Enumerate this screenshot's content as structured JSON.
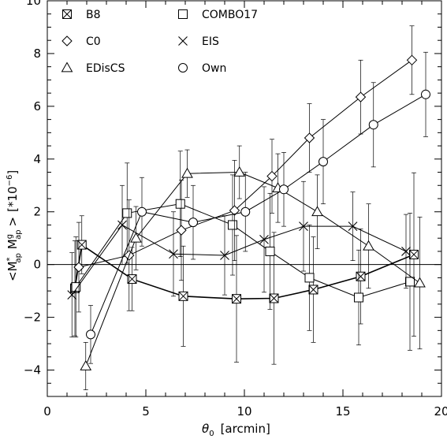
{
  "chart_data": {
    "type": "scatter",
    "xlabel_symbol": "θ",
    "xlabel_sub": "0",
    "xlabel_text": "[arcmin]",
    "ylabel_parts": {
      "open": "<M",
      "sup1": "*",
      "sub1": "ap",
      "mid": " M",
      "sup2": "g",
      "sub2": "ap",
      "close": ">",
      "unit": "[*10",
      "unit_exp": "−6",
      "unit_close": "]"
    },
    "xlim": [
      0,
      20
    ],
    "ylim": [
      -5,
      10
    ],
    "x_ticks": [
      0,
      5,
      10,
      15,
      20
    ],
    "x_tick_labels": [
      "0",
      "5",
      "10",
      "15",
      "20"
    ],
    "y_ticks": [
      -4,
      -2,
      0,
      2,
      4,
      6,
      8,
      10
    ],
    "y_tick_labels": [
      "−4",
      "−2",
      "0",
      "2",
      "4",
      "6",
      "8",
      "10"
    ],
    "zero_line": 0,
    "series": [
      {
        "name": "B8",
        "marker": "boxed-x",
        "line_width": 1.6,
        "x": [
          1.4,
          1.75,
          4.3,
          6.9,
          9.6,
          11.5,
          13.5,
          15.9,
          18.6
        ],
        "y": [
          -0.9,
          0.75,
          -0.55,
          -1.2,
          -1.3,
          -1.28,
          -0.95,
          -0.45,
          0.38
        ],
        "err": [
          1.8,
          1.1,
          1.2,
          1.9,
          2.4,
          2.5,
          2.0,
          1.8,
          3.1
        ]
      },
      {
        "name": "COMBO17",
        "marker": "square",
        "line_width": 1,
        "x": [
          1.45,
          4.05,
          6.75,
          9.4,
          11.3,
          13.3,
          15.8,
          18.4
        ],
        "y": [
          -0.85,
          1.95,
          2.3,
          1.5,
          0.5,
          -0.5,
          -1.25,
          -0.65
        ],
        "err": [
          1.9,
          1.9,
          2.0,
          1.9,
          2.2,
          2.0,
          1.8,
          2.6
        ]
      },
      {
        "name": "C0",
        "marker": "diamond",
        "line_width": 1,
        "x": [
          1.6,
          4.15,
          6.8,
          9.5,
          11.4,
          13.3,
          15.9,
          18.5
        ],
        "y": [
          -0.1,
          0.35,
          1.3,
          2.05,
          3.35,
          4.8,
          6.35,
          7.75
        ],
        "err": [
          1.7,
          2.1,
          1.9,
          1.9,
          1.4,
          1.3,
          1.4,
          1.3
        ]
      },
      {
        "name": "EIS",
        "marker": "x",
        "line_width": 1,
        "x": [
          1.25,
          3.8,
          6.4,
          9.0,
          11.0,
          13.0,
          15.5,
          18.2
        ],
        "y": [
          -1.15,
          1.5,
          0.4,
          0.35,
          0.95,
          1.45,
          1.45,
          0.5
        ],
        "err": [
          1.6,
          1.5,
          1.6,
          1.5,
          2.0,
          1.7,
          1.3,
          1.4
        ]
      },
      {
        "name": "EDisCS",
        "marker": "triangle",
        "line_width": 1,
        "x": [
          1.95,
          4.5,
          7.1,
          9.75,
          11.7,
          13.7,
          16.3,
          18.9
        ],
        "y": [
          -3.85,
          1.0,
          3.45,
          3.5,
          2.9,
          2.0,
          0.7,
          -0.7
        ],
        "err": [
          0.9,
          1.2,
          0.9,
          1.0,
          1.3,
          1.4,
          1.6,
          2.5
        ]
      },
      {
        "name": "Own",
        "marker": "circle",
        "line_width": 1,
        "x": [
          2.2,
          4.8,
          7.4,
          10.05,
          12.0,
          14.0,
          16.55,
          19.2
        ],
        "y": [
          -2.65,
          2.0,
          1.6,
          2.0,
          2.85,
          3.9,
          5.3,
          6.45
        ],
        "err": [
          1.1,
          1.3,
          1.4,
          1.5,
          1.4,
          1.6,
          1.6,
          1.6
        ]
      }
    ],
    "legend": {
      "placement": "top-left",
      "columns": [
        [
          "B8",
          "C0",
          "EDisCS"
        ],
        [
          "COMBO17",
          "EIS",
          "Own"
        ]
      ]
    }
  }
}
